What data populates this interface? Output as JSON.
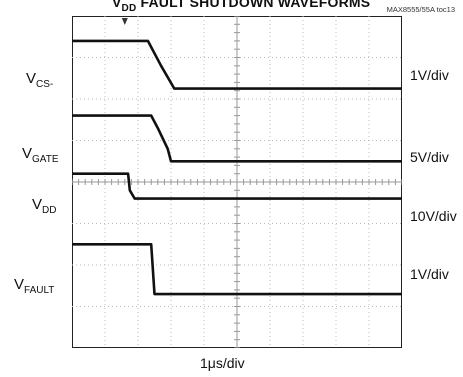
{
  "header": {
    "title_main": "V",
    "title_sub": "DD",
    "title_rest": " FAULT SHUTDOWN WAVEFORMS",
    "tag": "MAX8555/55A toc13"
  },
  "chart_data": {
    "type": "line",
    "title": "VDD FAULT SHUTDOWN WAVEFORMS",
    "xlabel": "1μs/div",
    "x_divisions": 10,
    "y_divisions": 8,
    "grid": true,
    "series": [
      {
        "name": "VCS-",
        "label_main": "V",
        "label_sub": "CS-",
        "scale": "1V/div",
        "x": [
          0,
          2.3,
          2.7,
          3.1,
          10
        ],
        "y": [
          7.4,
          7.4,
          6.8,
          6.25,
          6.25
        ]
      },
      {
        "name": "VGATE",
        "label_main": "V",
        "label_sub": "GATE",
        "scale": "5V/div",
        "x": [
          0,
          2.4,
          2.6,
          2.9,
          3.0,
          10
        ],
        "y": [
          5.6,
          5.6,
          5.3,
          4.8,
          4.5,
          4.5
        ]
      },
      {
        "name": "VDD",
        "label_main": "V",
        "label_sub": "DD",
        "scale": "10V/div",
        "x": [
          0,
          1.7,
          1.75,
          1.9,
          10
        ],
        "y": [
          4.2,
          4.2,
          3.8,
          3.6,
          3.6
        ]
      },
      {
        "name": "VFAULT",
        "label_main": "V",
        "label_sub": "FAULT",
        "scale": "1V/div",
        "x": [
          0,
          2.4,
          2.5,
          10
        ],
        "y": [
          2.5,
          2.5,
          1.3,
          1.3
        ]
      }
    ]
  }
}
